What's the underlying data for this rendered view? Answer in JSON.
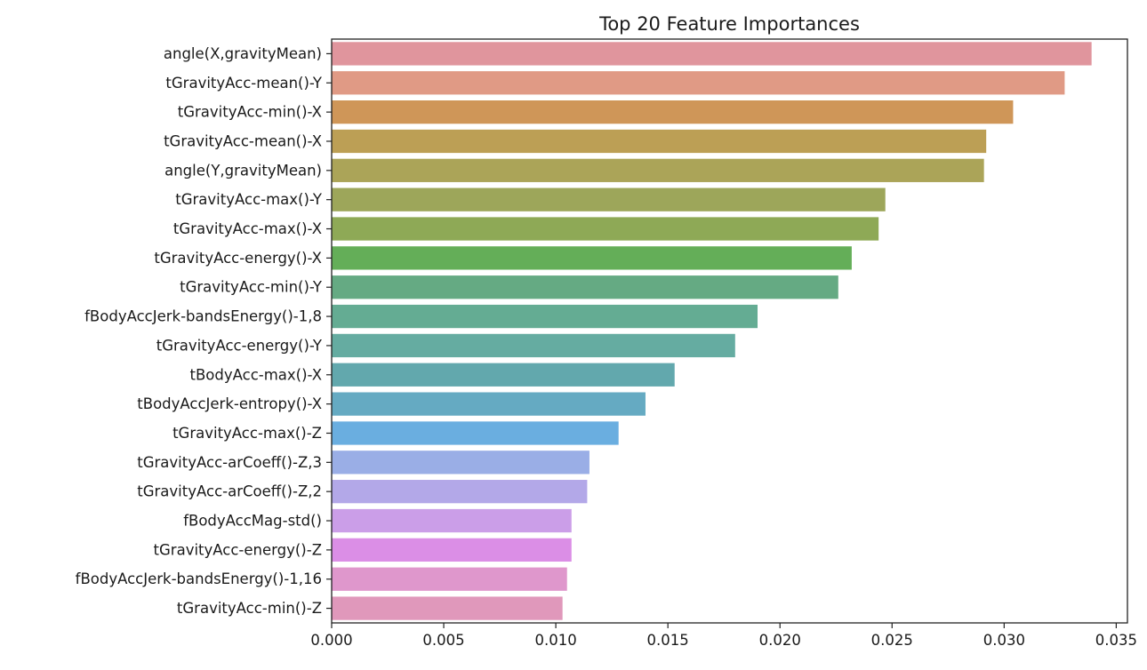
{
  "chart_data": {
    "type": "bar",
    "orientation": "horizontal",
    "title": "Top 20 Feature Importances",
    "xlabel": "",
    "ylabel": "",
    "xlim": [
      0,
      0.0355
    ],
    "xticks": [
      "0.000",
      "0.005",
      "0.010",
      "0.015",
      "0.020",
      "0.025",
      "0.030",
      "0.035"
    ],
    "grid": false,
    "categories": [
      "angle(X,gravityMean)",
      "tGravityAcc-mean()-Y",
      "tGravityAcc-min()-X",
      "tGravityAcc-mean()-X",
      "angle(Y,gravityMean)",
      "tGravityAcc-max()-Y",
      "tGravityAcc-max()-X",
      "tGravityAcc-energy()-X",
      "tGravityAcc-min()-Y",
      "fBodyAccJerk-bandsEnergy()-1,8",
      "tGravityAcc-energy()-Y",
      "tBodyAcc-max()-X",
      "tBodyAccJerk-entropy()-X",
      "tGravityAcc-max()-Z",
      "tGravityAcc-arCoeff()-Z,3",
      "tGravityAcc-arCoeff()-Z,2",
      "fBodyAccMag-std()",
      "tGravityAcc-energy()-Z",
      "fBodyAccJerk-bandsEnergy()-1,16",
      "tGravityAcc-min()-Z"
    ],
    "values": [
      0.0339,
      0.0327,
      0.0304,
      0.0292,
      0.0291,
      0.0247,
      0.0244,
      0.0232,
      0.0226,
      0.019,
      0.018,
      0.0153,
      0.014,
      0.0128,
      0.0115,
      0.0114,
      0.0107,
      0.0107,
      0.0105,
      0.0103
    ],
    "colors": [
      "#e0959d",
      "#e09a85",
      "#cf9658",
      "#bc9f55",
      "#aba458",
      "#9da65a",
      "#8ea956",
      "#64ae58",
      "#65aa83",
      "#64ac93",
      "#65aca1",
      "#62a8ad",
      "#65aac2",
      "#6aaee0",
      "#9aaee6",
      "#b3a8e8",
      "#cb9ee8",
      "#db8ee6",
      "#df97cc",
      "#e098bb"
    ]
  }
}
